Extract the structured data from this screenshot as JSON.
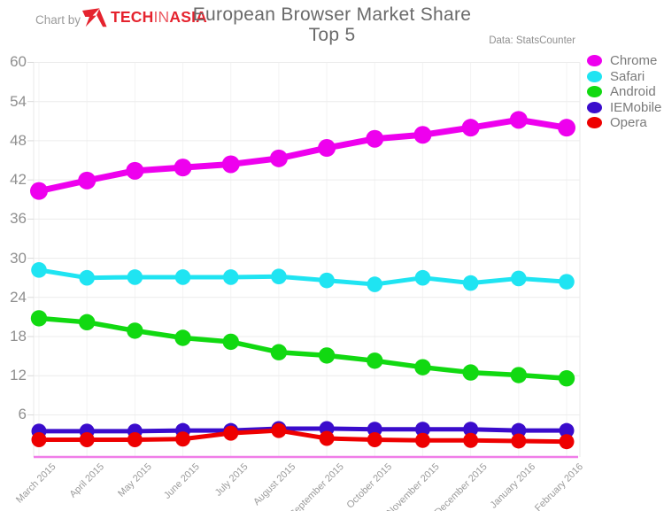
{
  "header": {
    "chart_by_label": "Chart by",
    "logo": {
      "part1": "TECH",
      "part2": "IN",
      "part3": "ASIA"
    },
    "title_line1": "European Browser Market Share",
    "title_line2": "Top 5",
    "source_label": "Data: StatsCounter"
  },
  "colors": {
    "logo_red": "#e5232e",
    "axis_baseline": "#f07de8",
    "gridline": "#ececec",
    "tick": "#d9d9d9"
  },
  "chart_data": {
    "type": "line",
    "title": "European Browser Market Share",
    "subtitle": "Top 5",
    "source": "Data: StatsCounter",
    "grid": true,
    "legend_position": "right",
    "ylim": [
      0,
      62
    ],
    "y_ticks": [
      6,
      12,
      18,
      24,
      30,
      36,
      42,
      48,
      54,
      60
    ],
    "x_categories": [
      "March 2015",
      "April 2015",
      "May 2015",
      "June 2015",
      "July 2015",
      "August 2015",
      "September 2015",
      "October 2015",
      "November 2015",
      "December 2015",
      "January 2016",
      "February 2016"
    ],
    "series": [
      {
        "name": "Chrome",
        "color": "#ee00ee",
        "values": [
          40.3,
          41.9,
          43.4,
          43.9,
          44.4,
          45.3,
          46.9,
          48.3,
          48.9,
          50.0,
          51.2,
          50.0
        ]
      },
      {
        "name": "Safari",
        "color": "#1fe4f2",
        "values": [
          28.2,
          27.0,
          27.1,
          27.1,
          27.1,
          27.2,
          26.6,
          26.0,
          27.0,
          26.2,
          26.9,
          26.4
        ]
      },
      {
        "name": "Android",
        "color": "#11d911",
        "values": [
          20.8,
          20.2,
          18.9,
          17.8,
          17.2,
          15.6,
          15.1,
          14.3,
          13.3,
          12.5,
          12.1,
          11.6
        ]
      },
      {
        "name": "IEMobile",
        "color": "#3a0ccc",
        "values": [
          3.5,
          3.5,
          3.5,
          3.6,
          3.6,
          3.9,
          3.9,
          3.8,
          3.8,
          3.8,
          3.6,
          3.6
        ]
      },
      {
        "name": "Opera",
        "color": "#ee0000",
        "values": [
          2.2,
          2.2,
          2.2,
          2.3,
          3.2,
          3.6,
          2.4,
          2.2,
          2.1,
          2.1,
          2.0,
          1.9
        ]
      }
    ]
  }
}
